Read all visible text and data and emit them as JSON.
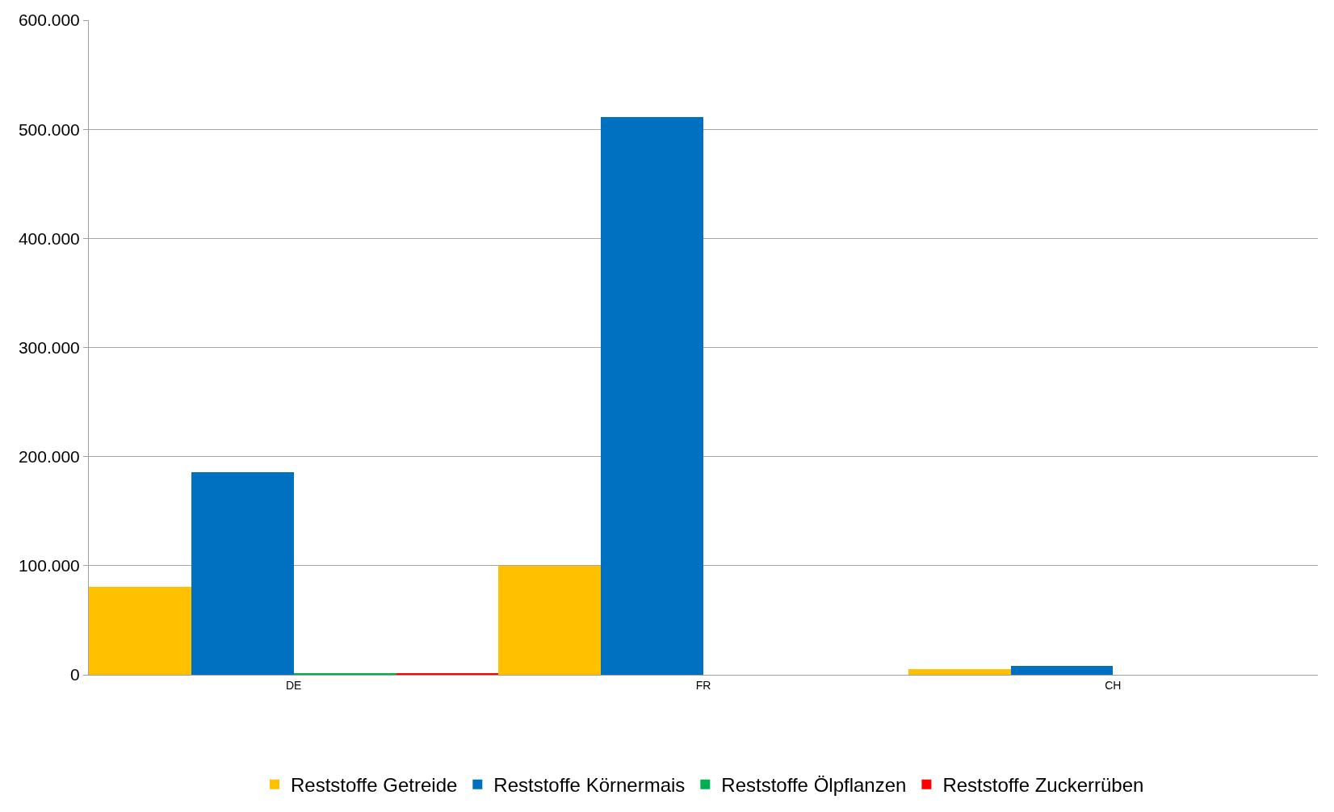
{
  "chart_data": {
    "type": "bar",
    "categories": [
      "DE",
      "FR",
      "CH"
    ],
    "series": [
      {
        "name": "Reststoffe Getreide",
        "color": "#ffc000",
        "values": [
          81000,
          100000,
          5300
        ]
      },
      {
        "name": "Reststoffe Körnermais",
        "color": "#0070c0",
        "values": [
          186000,
          511000,
          8300
        ]
      },
      {
        "name": "Reststoffe Ölpflanzen",
        "color": "#00b050",
        "values": [
          1000,
          0,
          0
        ]
      },
      {
        "name": "Reststoffe Zuckerrüben",
        "color": "#ff0000",
        "values": [
          1000,
          0,
          0
        ]
      }
    ],
    "ylim": [
      0,
      600000
    ],
    "yticks": [
      {
        "value": 0,
        "label": "0"
      },
      {
        "value": 100000,
        "label": "100.000"
      },
      {
        "value": 200000,
        "label": "200.000"
      },
      {
        "value": 300000,
        "label": "300.000"
      },
      {
        "value": 400000,
        "label": "400.000"
      },
      {
        "value": 500000,
        "label": "500.000"
      },
      {
        "value": 600000,
        "label": "600.000"
      }
    ],
    "grid": "y",
    "legend": "bottom"
  }
}
